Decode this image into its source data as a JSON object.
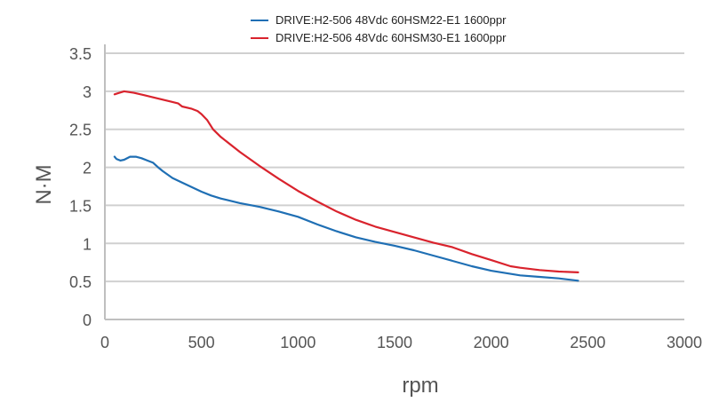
{
  "chart_data": {
    "type": "line",
    "title": "",
    "xlabel": "rpm",
    "ylabel": "N·M",
    "xlim": [
      0,
      3000
    ],
    "ylim": [
      0,
      3.5
    ],
    "x_ticks": [
      "0",
      "500",
      "1000",
      "1500",
      "2000",
      "2500",
      "3000"
    ],
    "y_ticks": [
      "0",
      "0.5",
      "1",
      "1.5",
      "2",
      "2.5",
      "3",
      "3.5"
    ],
    "grid": "horizontal",
    "legend_position": "top-center",
    "series": [
      {
        "name": "DRIVE:H2-506 48Vdc 60HSM22-E1 1600ppr",
        "color": "#1f6fb4",
        "points": [
          [
            50,
            2.14
          ],
          [
            60,
            2.11
          ],
          [
            80,
            2.09
          ],
          [
            100,
            2.1
          ],
          [
            130,
            2.14
          ],
          [
            160,
            2.14
          ],
          [
            190,
            2.12
          ],
          [
            220,
            2.09
          ],
          [
            250,
            2.06
          ],
          [
            280,
            1.99
          ],
          [
            300,
            1.95
          ],
          [
            350,
            1.86
          ],
          [
            400,
            1.8
          ],
          [
            450,
            1.74
          ],
          [
            500,
            1.68
          ],
          [
            550,
            1.63
          ],
          [
            600,
            1.59
          ],
          [
            700,
            1.53
          ],
          [
            800,
            1.48
          ],
          [
            900,
            1.42
          ],
          [
            1000,
            1.35
          ],
          [
            1100,
            1.25
          ],
          [
            1200,
            1.16
          ],
          [
            1300,
            1.08
          ],
          [
            1400,
            1.02
          ],
          [
            1500,
            0.97
          ],
          [
            1600,
            0.91
          ],
          [
            1700,
            0.84
          ],
          [
            1800,
            0.77
          ],
          [
            1900,
            0.7
          ],
          [
            2000,
            0.64
          ],
          [
            2100,
            0.6
          ],
          [
            2150,
            0.58
          ],
          [
            2250,
            0.56
          ],
          [
            2350,
            0.54
          ],
          [
            2450,
            0.51
          ]
        ]
      },
      {
        "name": "DRIVE:H2-506 48Vdc 60HSM30-E1 1600ppr",
        "color": "#d9232d",
        "points": [
          [
            50,
            2.96
          ],
          [
            75,
            2.98
          ],
          [
            100,
            3.0
          ],
          [
            150,
            2.98
          ],
          [
            200,
            2.95
          ],
          [
            250,
            2.92
          ],
          [
            300,
            2.89
          ],
          [
            350,
            2.86
          ],
          [
            380,
            2.84
          ],
          [
            400,
            2.8
          ],
          [
            450,
            2.77
          ],
          [
            480,
            2.74
          ],
          [
            500,
            2.7
          ],
          [
            530,
            2.62
          ],
          [
            560,
            2.5
          ],
          [
            600,
            2.4
          ],
          [
            700,
            2.2
          ],
          [
            800,
            2.02
          ],
          [
            900,
            1.85
          ],
          [
            1000,
            1.69
          ],
          [
            1100,
            1.55
          ],
          [
            1200,
            1.42
          ],
          [
            1300,
            1.31
          ],
          [
            1400,
            1.22
          ],
          [
            1500,
            1.15
          ],
          [
            1600,
            1.08
          ],
          [
            1700,
            1.01
          ],
          [
            1800,
            0.95
          ],
          [
            1900,
            0.86
          ],
          [
            2000,
            0.78
          ],
          [
            2100,
            0.7
          ],
          [
            2150,
            0.68
          ],
          [
            2250,
            0.65
          ],
          [
            2350,
            0.63
          ],
          [
            2450,
            0.62
          ]
        ]
      }
    ]
  }
}
